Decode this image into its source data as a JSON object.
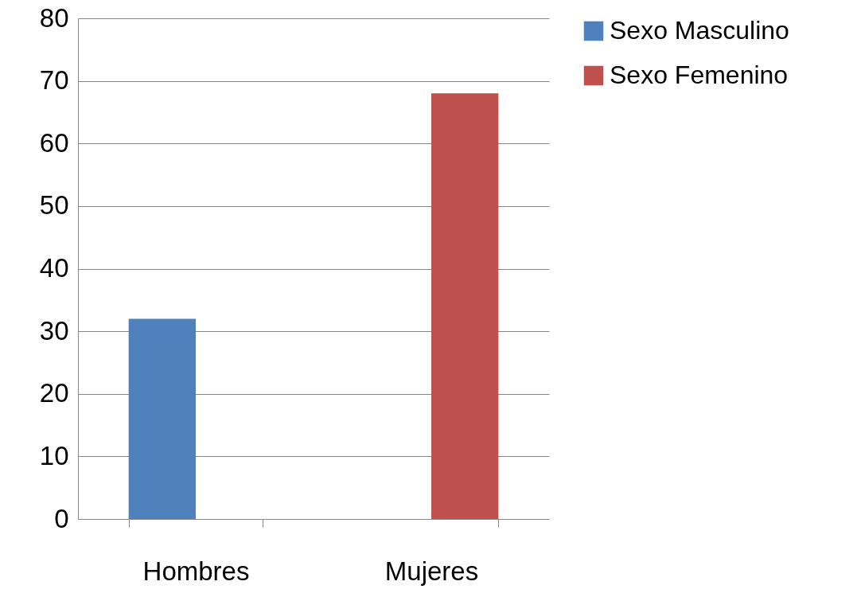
{
  "chart_data": {
    "type": "bar",
    "categories": [
      "Hombres",
      "Mujeres"
    ],
    "series": [
      {
        "name": "Sexo Masculino",
        "color": "#4f81bd",
        "values": [
          32,
          null
        ]
      },
      {
        "name": "Sexo Femenino",
        "color": "#c0504d",
        "values": [
          null,
          68
        ]
      }
    ],
    "ylim": [
      0,
      80
    ],
    "yticks": [
      0,
      10,
      20,
      30,
      40,
      50,
      60,
      70,
      80
    ],
    "grid": "y",
    "legend": "right"
  }
}
